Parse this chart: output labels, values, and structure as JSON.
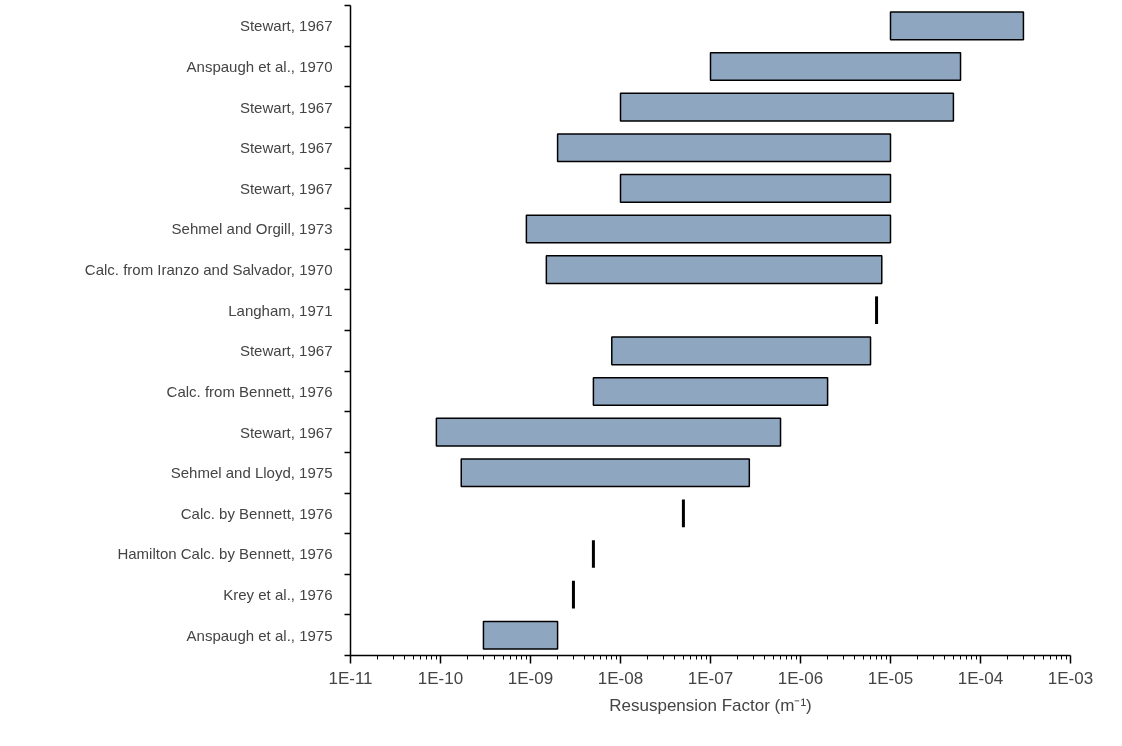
{
  "chart_data": {
    "type": "bar",
    "orientation": "horizontal",
    "log": "x",
    "xlabel": "Resuspension Factor (m⁻¹)",
    "categories": [
      "Stewart, 1967",
      "Anspaugh et al., 1970",
      "Stewart, 1967",
      "Stewart, 1967",
      "Stewart, 1967",
      "Sehmel and Orgill, 1973",
      "Calc. from Iranzo and Salvador, 1970",
      "Langham, 1971",
      "Stewart, 1967",
      "Calc. from Bennett, 1976",
      "Stewart, 1967",
      "Sehmel and Lloyd, 1975",
      "Calc. by Bennett, 1976",
      "Hamilton Calc. by Bennett, 1976",
      "Krey et al., 1976",
      "Anspaugh et al., 1975"
    ],
    "series": [
      {
        "color": "#8fa6c1",
        "base": [
          1e-05,
          1e-07,
          1e-08,
          2e-09,
          1e-08,
          9e-10,
          1.5e-09,
          null,
          8e-09,
          5e-09,
          9e-11,
          1.7e-10,
          null,
          null,
          null,
          3e-10
        ],
        "values": [
          0.00029,
          5.99e-05,
          4.999e-05,
          9.998e-06,
          9.99e-06,
          9.9991e-06,
          7.9985e-06,
          null,
          5.992e-06,
          1.995e-06,
          5.9991e-07,
          2.6983e-07,
          null,
          null,
          null,
          1.7e-09
        ]
      },
      {
        "color": "#000000",
        "base": [
          null,
          null,
          null,
          null,
          null,
          null,
          null,
          7e-06,
          null,
          null,
          null,
          null,
          5e-08,
          5e-09,
          3e-09,
          null
        ],
        "values": [
          null,
          null,
          null,
          null,
          null,
          null,
          null,
          0,
          null,
          null,
          null,
          null,
          0,
          0,
          0,
          null
        ]
      }
    ],
    "xlim": [
      1e-11,
      0.001
    ],
    "xticks": [
      {
        "value": 1e-11,
        "label": "1E-11"
      },
      {
        "value": 1e-10,
        "label": "1E-10"
      },
      {
        "value": 1e-09,
        "label": "1E-09"
      },
      {
        "value": 1e-08,
        "label": "1E-08"
      },
      {
        "value": 1e-07,
        "label": "1E-07"
      },
      {
        "value": 1e-06,
        "label": "1E-06"
      },
      {
        "value": 1e-05,
        "label": "1E-05"
      },
      {
        "value": 0.0001,
        "label": "1E-04"
      },
      {
        "value": 0.001,
        "label": "1E-03"
      }
    ],
    "grid": false
  }
}
